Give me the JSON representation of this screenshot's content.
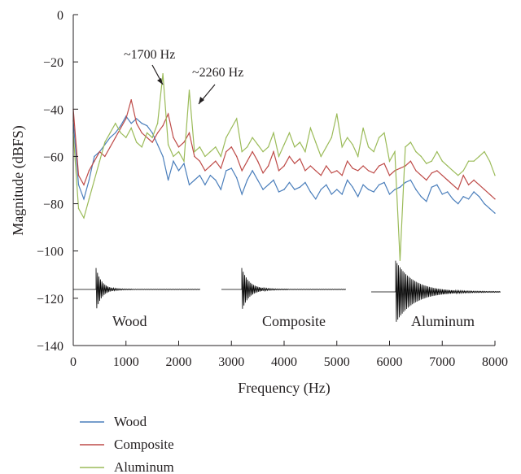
{
  "chart_data": {
    "type": "line",
    "title": "",
    "xlabel": "Frequency (Hz)",
    "ylabel": "Magnitude (dBFS)",
    "xlim": [
      0,
      8000
    ],
    "ylim": [
      -140,
      0
    ],
    "xticks": [
      "0",
      "1000",
      "2000",
      "3000",
      "4000",
      "5000",
      "6000",
      "7000",
      "8000"
    ],
    "yticks": [
      "0",
      "−20",
      "−40",
      "−60",
      "−80",
      "−100",
      "−120",
      "−140"
    ],
    "grid": false,
    "legend_position": "bottom-left",
    "annotations": [
      {
        "label": "~1700 Hz",
        "x": 1700,
        "y": -25
      },
      {
        "label": "~2260 Hz",
        "x": 2260,
        "y": -32
      }
    ],
    "inset_labels": [
      "Wood",
      "Composite",
      "Aluminum"
    ],
    "series": [
      {
        "name": "Wood",
        "color": "#4a7ebb",
        "x": [
          0,
          100,
          200,
          300,
          400,
          500,
          600,
          700,
          800,
          900,
          1000,
          1100,
          1200,
          1300,
          1400,
          1500,
          1600,
          1700,
          1800,
          1900,
          2000,
          2100,
          2200,
          2300,
          2400,
          2500,
          2600,
          2700,
          2800,
          2900,
          3000,
          3100,
          3200,
          3300,
          3400,
          3500,
          3600,
          3700,
          3800,
          3900,
          4000,
          4100,
          4200,
          4300,
          4400,
          4500,
          4600,
          4700,
          4800,
          4900,
          5000,
          5100,
          5200,
          5300,
          5400,
          5500,
          5600,
          5700,
          5800,
          5900,
          6000,
          6100,
          6200,
          6300,
          6400,
          6500,
          6600,
          6700,
          6800,
          6900,
          7000,
          7100,
          7200,
          7300,
          7400,
          7500,
          7600,
          7700,
          7800,
          7900,
          8000
        ],
        "values": [
          -45,
          -72,
          -78,
          -70,
          -60,
          -58,
          -55,
          -52,
          -50,
          -47,
          -43,
          -46,
          -44,
          -46,
          -47,
          -50,
          -55,
          -60,
          -70,
          -62,
          -66,
          -63,
          -72,
          -70,
          -68,
          -72,
          -68,
          -70,
          -74,
          -66,
          -65,
          -69,
          -76,
          -70,
          -66,
          -70,
          -74,
          -72,
          -70,
          -75,
          -74,
          -71,
          -74,
          -73,
          -71,
          -75,
          -78,
          -74,
          -72,
          -76,
          -74,
          -76,
          -70,
          -73,
          -77,
          -72,
          -74,
          -75,
          -72,
          -71,
          -76,
          -74,
          -73,
          -71,
          -70,
          -74,
          -77,
          -79,
          -73,
          -72,
          -76,
          -75,
          -78,
          -80,
          -77,
          -78,
          -75,
          -77,
          -80,
          -82,
          -84
        ]
      },
      {
        "name": "Composite",
        "color": "#be4b48",
        "x": [
          0,
          100,
          200,
          300,
          400,
          500,
          600,
          700,
          800,
          900,
          1000,
          1100,
          1200,
          1300,
          1400,
          1500,
          1600,
          1700,
          1800,
          1900,
          2000,
          2100,
          2200,
          2300,
          2400,
          2500,
          2600,
          2700,
          2800,
          2900,
          3000,
          3100,
          3200,
          3300,
          3400,
          3500,
          3600,
          3700,
          3800,
          3900,
          4000,
          4100,
          4200,
          4300,
          4400,
          4500,
          4600,
          4700,
          4800,
          4900,
          5000,
          5100,
          5200,
          5300,
          5400,
          5500,
          5600,
          5700,
          5800,
          5900,
          6000,
          6100,
          6200,
          6300,
          6400,
          6500,
          6600,
          6700,
          6800,
          6900,
          7000,
          7100,
          7200,
          7300,
          7400,
          7500,
          7600,
          7700,
          7800,
          7900,
          8000
        ],
        "values": [
          -40,
          -68,
          -72,
          -66,
          -62,
          -58,
          -60,
          -56,
          -52,
          -48,
          -44,
          -36,
          -46,
          -50,
          -52,
          -54,
          -50,
          -47,
          -42,
          -52,
          -56,
          -54,
          -50,
          -60,
          -62,
          -66,
          -64,
          -62,
          -65,
          -58,
          -56,
          -60,
          -66,
          -62,
          -58,
          -62,
          -67,
          -64,
          -58,
          -66,
          -64,
          -60,
          -63,
          -61,
          -66,
          -64,
          -66,
          -68,
          -64,
          -67,
          -66,
          -68,
          -62,
          -65,
          -66,
          -64,
          -66,
          -67,
          -64,
          -63,
          -68,
          -66,
          -65,
          -64,
          -62,
          -66,
          -68,
          -70,
          -67,
          -66,
          -68,
          -70,
          -72,
          -74,
          -68,
          -72,
          -70,
          -72,
          -74,
          -76,
          -78
        ]
      },
      {
        "name": "Aluminum",
        "color": "#9bbb59",
        "x": [
          0,
          100,
          200,
          300,
          400,
          500,
          600,
          700,
          800,
          900,
          1000,
          1100,
          1200,
          1300,
          1400,
          1500,
          1600,
          1700,
          1800,
          1900,
          2000,
          2100,
          2200,
          2300,
          2400,
          2500,
          2600,
          2700,
          2800,
          2900,
          3000,
          3100,
          3200,
          3300,
          3400,
          3500,
          3600,
          3700,
          3800,
          3900,
          4000,
          4100,
          4200,
          4300,
          4400,
          4500,
          4600,
          4700,
          4800,
          4900,
          5000,
          5100,
          5200,
          5300,
          5400,
          5500,
          5600,
          5700,
          5800,
          5900,
          6000,
          6100,
          6200,
          6300,
          6400,
          6500,
          6600,
          6700,
          6800,
          6900,
          7000,
          7100,
          7200,
          7300,
          7400,
          7500,
          7600,
          7700,
          7800,
          7900,
          8000
        ],
        "values": [
          -50,
          -82,
          -86,
          -78,
          -70,
          -62,
          -54,
          -50,
          -46,
          -50,
          -52,
          -48,
          -54,
          -56,
          -50,
          -52,
          -46,
          -25,
          -55,
          -60,
          -58,
          -62,
          -32,
          -58,
          -56,
          -60,
          -58,
          -56,
          -60,
          -52,
          -48,
          -44,
          -58,
          -56,
          -52,
          -55,
          -58,
          -56,
          -50,
          -60,
          -55,
          -50,
          -56,
          -54,
          -58,
          -48,
          -54,
          -60,
          -56,
          -52,
          -42,
          -56,
          -52,
          -55,
          -60,
          -48,
          -56,
          -58,
          -52,
          -50,
          -62,
          -58,
          -104,
          -56,
          -54,
          -58,
          -60,
          -63,
          -62,
          -58,
          -62,
          -64,
          -66,
          -68,
          -66,
          -62,
          -62,
          -60,
          -58,
          -62,
          -68
        ]
      }
    ]
  }
}
